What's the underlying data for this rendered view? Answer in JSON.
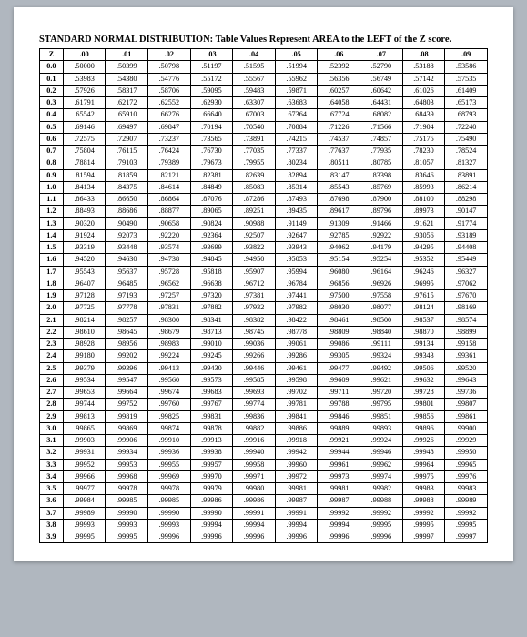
{
  "title": "STANDARD NORMAL DISTRIBUTION: Table Values Represent AREA to the LEFT of the Z score.",
  "table": {
    "type": "table",
    "corner_label": "Z",
    "columns": [
      ".00",
      ".01",
      ".02",
      ".03",
      ".04",
      ".05",
      ".06",
      ".07",
      ".08",
      ".09"
    ],
    "row_labels": [
      "0.0",
      "0.1",
      "0.2",
      "0.3",
      "0.4",
      "0.5",
      "0.6",
      "0.7",
      "0.8",
      "0.9",
      "1.0",
      "1.1",
      "1.2",
      "1.3",
      "1.4",
      "1.5",
      "1.6",
      "1.7",
      "1.8",
      "1.9",
      "2.0",
      "2.1",
      "2.2",
      "2.3",
      "2.4",
      "2.5",
      "2.6",
      "2.7",
      "2.8",
      "2.9",
      "3.0",
      "3.1",
      "3.2",
      "3.3",
      "3.4",
      "3.5",
      "3.6",
      "3.7",
      "3.8",
      "3.9"
    ],
    "rows": [
      [
        ".50000",
        ".50399",
        ".50798",
        ".51197",
        ".51595",
        ".51994",
        ".52392",
        ".52790",
        ".53188",
        ".53586"
      ],
      [
        ".53983",
        ".54380",
        ".54776",
        ".55172",
        ".55567",
        ".55962",
        ".56356",
        ".56749",
        ".57142",
        ".57535"
      ],
      [
        ".57926",
        ".58317",
        ".58706",
        ".59095",
        ".59483",
        ".59871",
        ".60257",
        ".60642",
        ".61026",
        ".61409"
      ],
      [
        ".61791",
        ".62172",
        ".62552",
        ".62930",
        ".63307",
        ".63683",
        ".64058",
        ".64431",
        ".64803",
        ".65173"
      ],
      [
        ".65542",
        ".65910",
        ".66276",
        ".66640",
        ".67003",
        ".67364",
        ".67724",
        ".68082",
        ".68439",
        ".68793"
      ],
      [
        ".69146",
        ".69497",
        ".69847",
        ".70194",
        ".70540",
        ".70884",
        ".71226",
        ".71566",
        ".71904",
        ".72240"
      ],
      [
        ".72575",
        ".72907",
        ".73237",
        ".73565",
        ".73891",
        ".74215",
        ".74537",
        ".74857",
        ".75175",
        ".75490"
      ],
      [
        ".75804",
        ".76115",
        ".76424",
        ".76730",
        ".77035",
        ".77337",
        ".77637",
        ".77935",
        ".78230",
        ".78524"
      ],
      [
        ".78814",
        ".79103",
        ".79389",
        ".79673",
        ".79955",
        ".80234",
        ".80511",
        ".80785",
        ".81057",
        ".81327"
      ],
      [
        ".81594",
        ".81859",
        ".82121",
        ".82381",
        ".82639",
        ".82894",
        ".83147",
        ".83398",
        ".83646",
        ".83891"
      ],
      [
        ".84134",
        ".84375",
        ".84614",
        ".84849",
        ".85083",
        ".85314",
        ".85543",
        ".85769",
        ".85993",
        ".86214"
      ],
      [
        ".86433",
        ".86650",
        ".86864",
        ".87076",
        ".87286",
        ".87493",
        ".87698",
        ".87900",
        ".88100",
        ".88298"
      ],
      [
        ".88493",
        ".88686",
        ".88877",
        ".89065",
        ".89251",
        ".89435",
        ".89617",
        ".89796",
        ".89973",
        ".90147"
      ],
      [
        ".90320",
        ".90490",
        ".90658",
        ".90824",
        ".90988",
        ".91149",
        ".91309",
        ".91466",
        ".91621",
        ".91774"
      ],
      [
        ".91924",
        ".92073",
        ".92220",
        ".92364",
        ".92507",
        ".92647",
        ".92785",
        ".92922",
        ".93056",
        ".93189"
      ],
      [
        ".93319",
        ".93448",
        ".93574",
        ".93699",
        ".93822",
        ".93943",
        ".94062",
        ".94179",
        ".94295",
        ".94408"
      ],
      [
        ".94520",
        ".94630",
        ".94738",
        ".94845",
        ".94950",
        ".95053",
        ".95154",
        ".95254",
        ".95352",
        ".95449"
      ],
      [
        ".95543",
        ".95637",
        ".95728",
        ".95818",
        ".95907",
        ".95994",
        ".96080",
        ".96164",
        ".96246",
        ".96327"
      ],
      [
        ".96407",
        ".96485",
        ".96562",
        ".96638",
        ".96712",
        ".96784",
        ".96856",
        ".96926",
        ".96995",
        ".97062"
      ],
      [
        ".97128",
        ".97193",
        ".97257",
        ".97320",
        ".97381",
        ".97441",
        ".97500",
        ".97558",
        ".97615",
        ".97670"
      ],
      [
        ".97725",
        ".97778",
        ".97831",
        ".97882",
        ".97932",
        ".97982",
        ".98030",
        ".98077",
        ".98124",
        ".98169"
      ],
      [
        ".98214",
        ".98257",
        ".98300",
        ".98341",
        ".98382",
        ".98422",
        ".98461",
        ".98500",
        ".98537",
        ".98574"
      ],
      [
        ".98610",
        ".98645",
        ".98679",
        ".98713",
        ".98745",
        ".98778",
        ".98809",
        ".98840",
        ".98870",
        ".98899"
      ],
      [
        ".98928",
        ".98956",
        ".98983",
        ".99010",
        ".99036",
        ".99061",
        ".99086",
        ".99111",
        ".99134",
        ".99158"
      ],
      [
        ".99180",
        ".99202",
        ".99224",
        ".99245",
        ".99266",
        ".99286",
        ".99305",
        ".99324",
        ".99343",
        ".99361"
      ],
      [
        ".99379",
        ".99396",
        ".99413",
        ".99430",
        ".99446",
        ".99461",
        ".99477",
        ".99492",
        ".99506",
        ".99520"
      ],
      [
        ".99534",
        ".99547",
        ".99560",
        ".99573",
        ".99585",
        ".99598",
        ".99609",
        ".99621",
        ".99632",
        ".99643"
      ],
      [
        ".99653",
        ".99664",
        ".99674",
        ".99683",
        ".99693",
        ".99702",
        ".99711",
        ".99720",
        ".99728",
        ".99736"
      ],
      [
        ".99744",
        ".99752",
        ".99760",
        ".99767",
        ".99774",
        ".99781",
        ".99788",
        ".99795",
        ".99801",
        ".99807"
      ],
      [
        ".99813",
        ".99819",
        ".99825",
        ".99831",
        ".99836",
        ".99841",
        ".99846",
        ".99851",
        ".99856",
        ".99861"
      ],
      [
        ".99865",
        ".99869",
        ".99874",
        ".99878",
        ".99882",
        ".99886",
        ".99889",
        ".99893",
        ".99896",
        ".99900"
      ],
      [
        ".99903",
        ".99906",
        ".99910",
        ".99913",
        ".99916",
        ".99918",
        ".99921",
        ".99924",
        ".99926",
        ".99929"
      ],
      [
        ".99931",
        ".99934",
        ".99936",
        ".99938",
        ".99940",
        ".99942",
        ".99944",
        ".99946",
        ".99948",
        ".99950"
      ],
      [
        ".99952",
        ".99953",
        ".99955",
        ".99957",
        ".99958",
        ".99960",
        ".99961",
        ".99962",
        ".99964",
        ".99965"
      ],
      [
        ".99966",
        ".99968",
        ".99969",
        ".99970",
        ".99971",
        ".99972",
        ".99973",
        ".99974",
        ".99975",
        ".99976"
      ],
      [
        ".99977",
        ".99978",
        ".99978",
        ".99979",
        ".99980",
        ".99981",
        ".99981",
        ".99982",
        ".99983",
        ".99983"
      ],
      [
        ".99984",
        ".99985",
        ".99985",
        ".99986",
        ".99986",
        ".99987",
        ".99987",
        ".99988",
        ".99988",
        ".99989"
      ],
      [
        ".99989",
        ".99990",
        ".99990",
        ".99990",
        ".99991",
        ".99991",
        ".99992",
        ".99992",
        ".99992",
        ".99992"
      ],
      [
        ".99993",
        ".99993",
        ".99993",
        ".99994",
        ".99994",
        ".99994",
        ".99994",
        ".99995",
        ".99995",
        ".99995"
      ],
      [
        ".99995",
        ".99995",
        ".99996",
        ".99996",
        ".99996",
        ".99996",
        ".99996",
        ".99996",
        ".99997",
        ".99997"
      ]
    ],
    "section_breaks": [
      5,
      10,
      15,
      20,
      25,
      30,
      35
    ],
    "border_color": "#000000",
    "background_color": "#ffffff",
    "header_fontweight": "bold",
    "cell_fontsize": 8.2,
    "title_fontsize": 10.5
  }
}
